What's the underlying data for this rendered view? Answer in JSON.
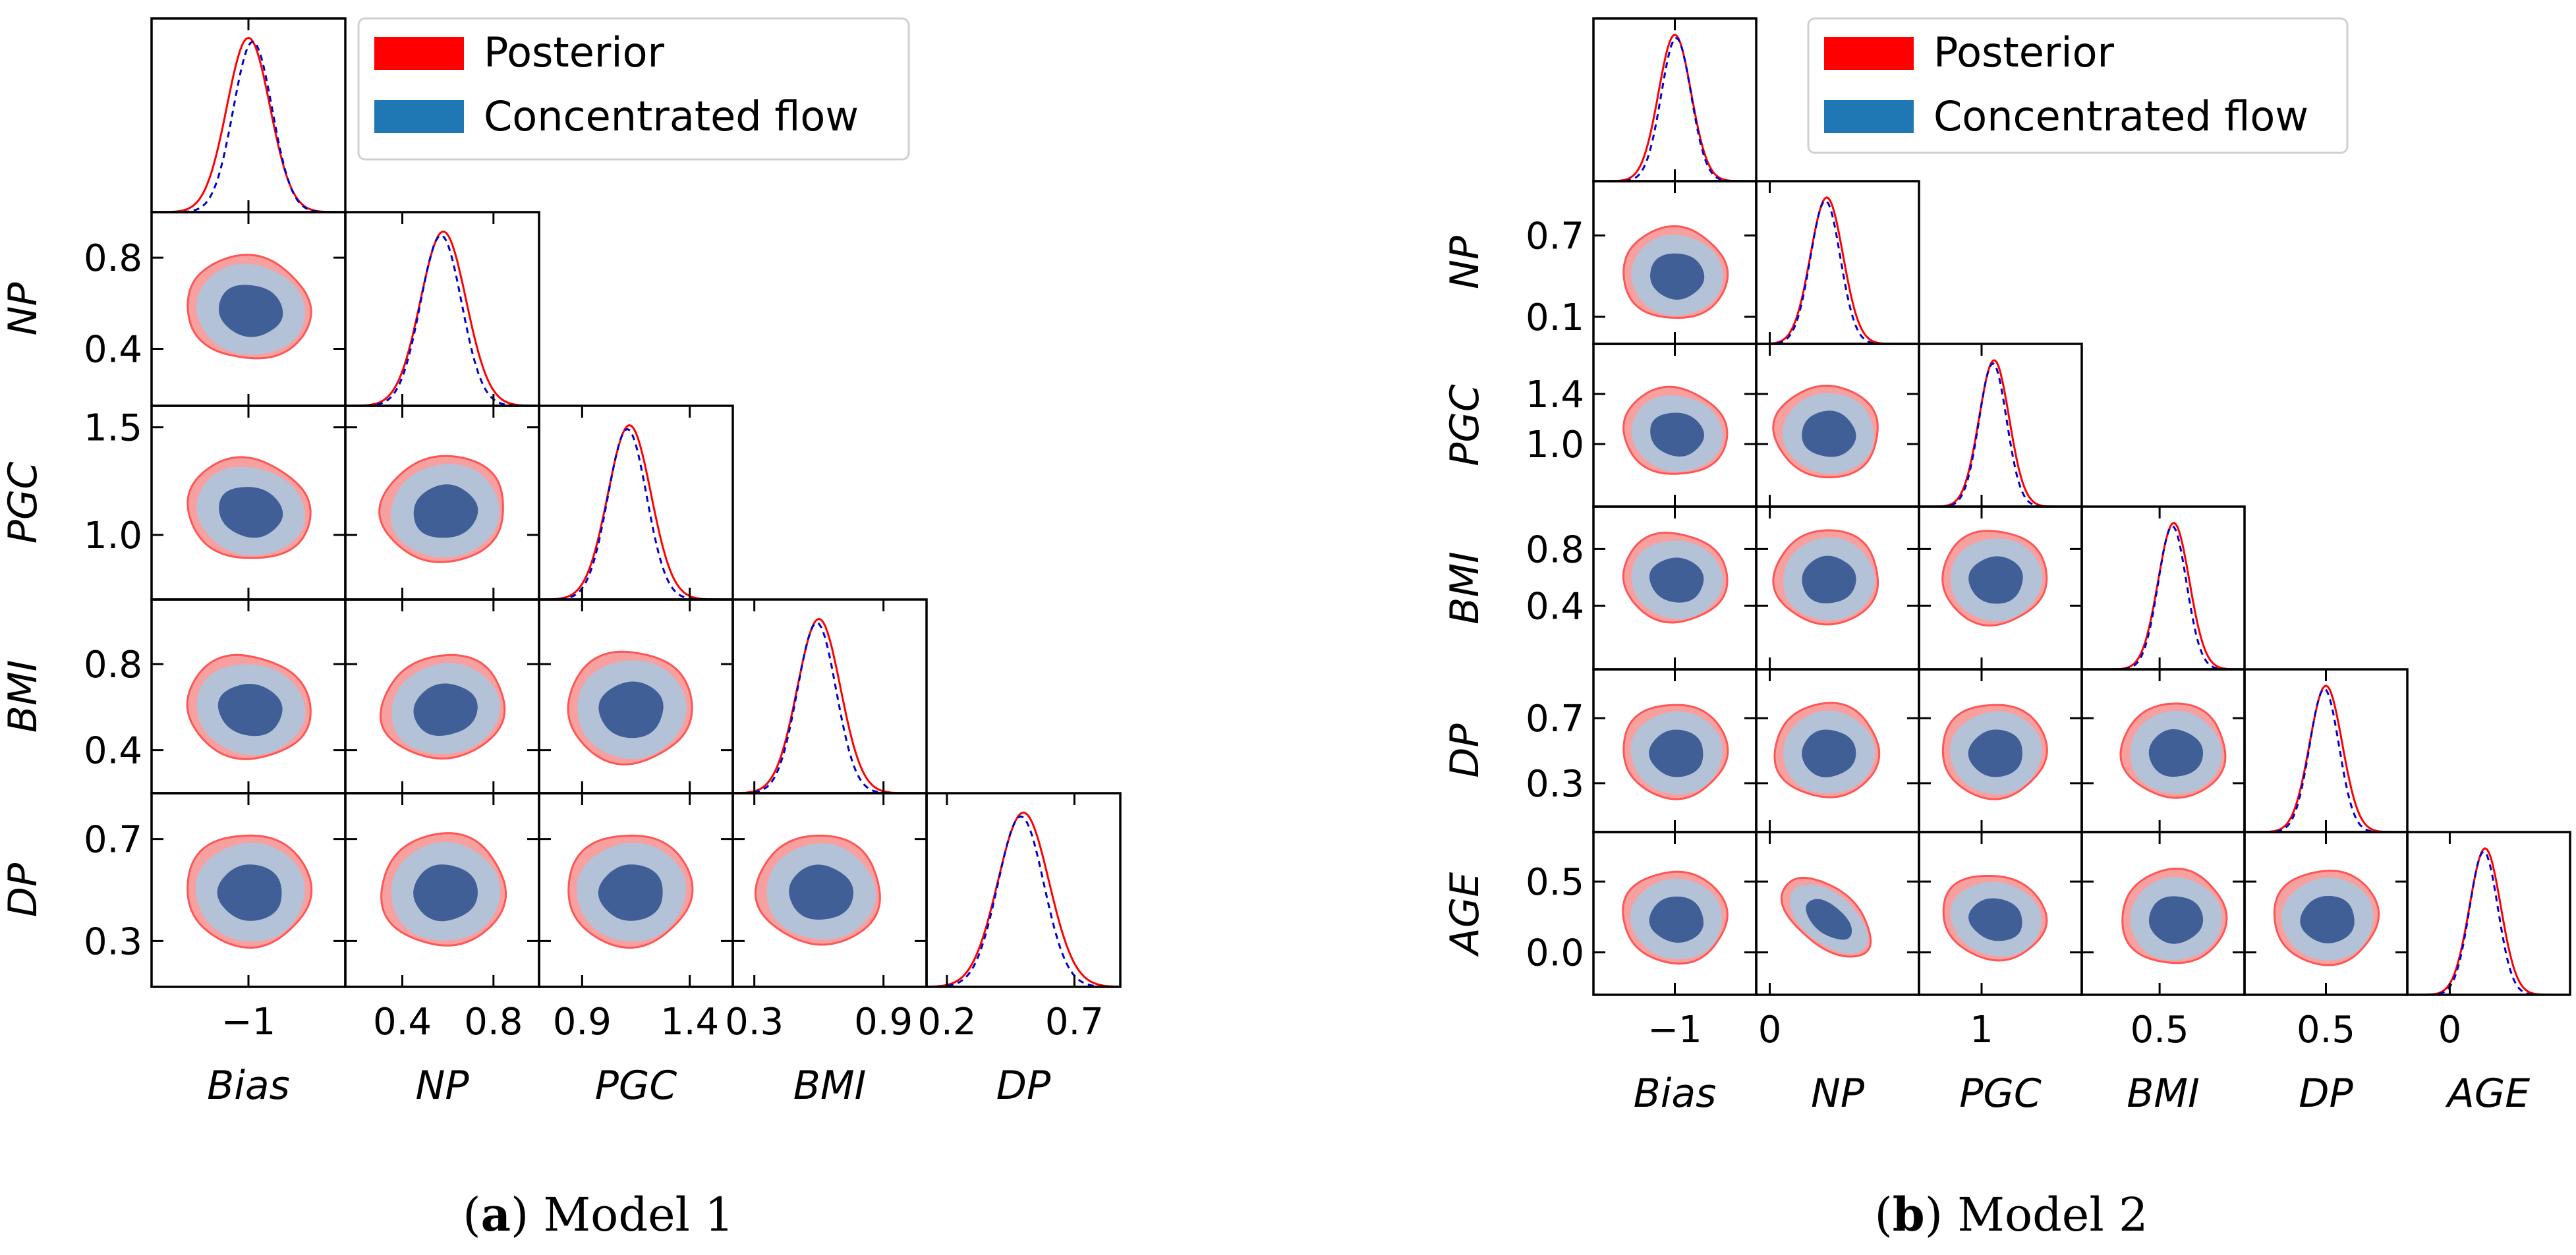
{
  "colors": {
    "posterior": "#ff0000",
    "posterior_fill_outer": "#f7a0a0",
    "posterior_line": "#ff5555",
    "flow": "#1f77b4",
    "flow_fill_outer": "#b4c2d8",
    "flow_fill_inner": "#3f5f96",
    "flow_line": "#0000cc"
  },
  "legend": {
    "posterior_label": "Posterior",
    "flow_label": "Concentrated flow"
  },
  "chart_data": [
    {
      "type": "corner",
      "caption_label": "a",
      "caption_text": "Model 1",
      "legend_entries": [
        "Posterior",
        "Concentrated flow"
      ],
      "parameters": [
        {
          "name": "Bias",
          "range": [
            -1.45,
            -0.55
          ],
          "ticks": [
            -1
          ],
          "tick_labels": [
            "−1"
          ],
          "mean_posterior": -1.0,
          "sd_posterior": 0.1,
          "mean_flow": -0.98,
          "sd_flow": 0.09
        },
        {
          "name": "NP",
          "range": [
            0.15,
            1.0
          ],
          "ticks": [
            0.4,
            0.8
          ],
          "tick_labels": [
            "0.4",
            "0.8"
          ],
          "mean_posterior": 0.58,
          "sd_posterior": 0.1,
          "mean_flow": 0.57,
          "sd_flow": 0.09
        },
        {
          "name": "PGC",
          "range": [
            0.7,
            1.6
          ],
          "ticks": [
            0.9,
            1.4
          ],
          "tick_labels": [
            "0.9",
            "1.4"
          ],
          "mean_posterior": 1.12,
          "sd_posterior": 0.1,
          "mean_flow": 1.11,
          "sd_flow": 0.09
        },
        {
          "name": "BMI",
          "range": [
            0.2,
            1.1
          ],
          "ticks": [
            0.3,
            0.9
          ],
          "tick_labels": [
            "0.3",
            "0.9"
          ],
          "mean_posterior": 0.6,
          "sd_posterior": 0.1,
          "mean_flow": 0.59,
          "sd_flow": 0.09
        },
        {
          "name": "DP",
          "range": [
            0.12,
            0.88
          ],
          "ticks": [
            0.2,
            0.7
          ],
          "tick_labels": [
            "0.2",
            "0.7"
          ],
          "mean_posterior": 0.5,
          "sd_posterior": 0.1,
          "mean_flow": 0.49,
          "sd_flow": 0.09
        }
      ],
      "y_axis_ticks": [
        null,
        {
          "ticks": [
            0.8,
            0.4
          ],
          "tick_labels": [
            "0.8",
            "0.4"
          ]
        },
        {
          "ticks": [
            1.5,
            1.0
          ],
          "tick_labels": [
            "1.5",
            "1.0"
          ]
        },
        {
          "ticks": [
            0.8,
            0.4
          ],
          "tick_labels": [
            "0.8",
            "0.4"
          ]
        },
        {
          "ticks": [
            0.7,
            0.3
          ],
          "tick_labels": [
            "0.7",
            "0.3"
          ]
        }
      ],
      "correlations": [
        [
          0,
          0,
          0,
          0,
          0
        ],
        [
          -0.2,
          0,
          0,
          0,
          0
        ],
        [
          -0.25,
          0.15,
          0,
          0,
          0
        ],
        [
          -0.2,
          0.2,
          0.05,
          0,
          0
        ],
        [
          -0.05,
          0.05,
          0.05,
          -0.1,
          0
        ]
      ]
    },
    {
      "type": "corner",
      "caption_label": "b",
      "caption_text": "Model 2",
      "legend_entries": [
        "Posterior",
        "Concentrated flow"
      ],
      "parameters": [
        {
          "name": "Bias",
          "range": [
            -1.6,
            -0.4
          ],
          "ticks": [
            -1
          ],
          "tick_labels": [
            "−1"
          ],
          "mean_posterior": -1.0,
          "sd_posterior": 0.12,
          "mean_flow": -0.99,
          "sd_flow": 0.11
        },
        {
          "name": "NP",
          "range": [
            -0.1,
            1.1
          ],
          "ticks": [
            0
          ],
          "tick_labels": [
            "0"
          ],
          "mean_posterior": 0.42,
          "sd_posterior": 0.12,
          "mean_flow": 0.41,
          "sd_flow": 0.11
        },
        {
          "name": "PGC",
          "range": [
            0.5,
            1.8
          ],
          "ticks": [
            1
          ],
          "tick_labels": [
            "1"
          ],
          "mean_posterior": 1.1,
          "sd_posterior": 0.12,
          "mean_flow": 1.09,
          "sd_flow": 0.11
        },
        {
          "name": "BMI",
          "range": [
            -0.05,
            1.1
          ],
          "ticks": [
            0.5
          ],
          "tick_labels": [
            "0.5"
          ],
          "mean_posterior": 0.6,
          "sd_posterior": 0.11,
          "mean_flow": 0.59,
          "sd_flow": 0.1
        },
        {
          "name": "DP",
          "range": [
            0.0,
            1.0
          ],
          "ticks": [
            0.5
          ],
          "tick_labels": [
            "0.5"
          ],
          "mean_posterior": 0.5,
          "sd_posterior": 0.1,
          "mean_flow": 0.49,
          "sd_flow": 0.09
        },
        {
          "name": "AGE",
          "range": [
            -0.3,
            0.85
          ],
          "ticks": [
            0
          ],
          "tick_labels": [
            "0"
          ],
          "mean_posterior": 0.25,
          "sd_posterior": 0.11,
          "mean_flow": 0.24,
          "sd_flow": 0.1
        }
      ],
      "y_axis_ticks": [
        null,
        {
          "ticks": [
            0.7,
            0.1
          ],
          "tick_labels": [
            "0.7",
            "0.1"
          ]
        },
        {
          "ticks": [
            1.4,
            1.0
          ],
          "tick_labels": [
            "1.4",
            "1.0"
          ]
        },
        {
          "ticks": [
            0.8,
            0.4
          ],
          "tick_labels": [
            "0.8",
            "0.4"
          ]
        },
        {
          "ticks": [
            0.7,
            0.3
          ],
          "tick_labels": [
            "0.7",
            "0.3"
          ]
        },
        {
          "ticks": [
            0.5,
            0.0
          ],
          "tick_labels": [
            "0.5",
            "0.0"
          ]
        }
      ],
      "correlations": [
        [
          0,
          0,
          0,
          0,
          0,
          0
        ],
        [
          -0.1,
          0,
          0,
          0,
          0,
          0
        ],
        [
          -0.2,
          -0.1,
          0,
          0,
          0,
          0
        ],
        [
          -0.15,
          0.05,
          0.05,
          0,
          0,
          0
        ],
        [
          -0.05,
          0.05,
          0.05,
          -0.05,
          0,
          0
        ],
        [
          -0.1,
          -0.75,
          -0.25,
          0.05,
          0.05,
          0
        ]
      ]
    }
  ]
}
